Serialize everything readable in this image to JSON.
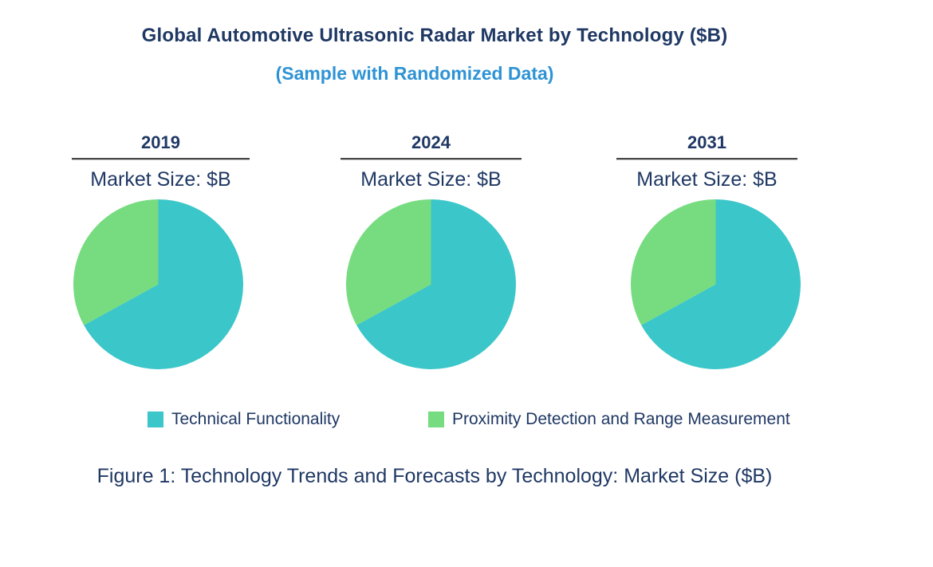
{
  "header": {
    "title": "Global Automotive Ultrasonic Radar Market by Technology ($B)",
    "subtitle": "(Sample with Randomized Data)"
  },
  "caption": "Figure 1: Technology Trends and Forecasts by Technology: Market Size ($B)",
  "legend": [
    {
      "label": "Technical Functionality",
      "color": "#3BC6C9"
    },
    {
      "label": "Proximity Detection and Range Measurement",
      "color": "#76DC7F"
    }
  ],
  "colors": {
    "title_navy": "#1F3864",
    "subtitle_blue": "#2E93D5",
    "underline_gray": "#464646",
    "background": "#FFFFFF"
  },
  "chart_data": {
    "type": "pie",
    "title": "Global Automotive Ultrasonic Radar Market by Technology ($B)",
    "subtitle": "(Sample with Randomized Data)",
    "legend_position": "bottom",
    "series": [
      "Technical Functionality",
      "Proximity Detection and Range Measurement"
    ],
    "series_colors": [
      "#3BC6C9",
      "#76DC7F"
    ],
    "start_angle_deg": 0,
    "direction": "clockwise",
    "pies": [
      {
        "year": "2019",
        "label": "Market Size: $B",
        "values_pct": [
          67,
          33
        ]
      },
      {
        "year": "2024",
        "label": "Market Size: $B",
        "values_pct": [
          67,
          33
        ]
      },
      {
        "year": "2031",
        "label": "Market Size: $B",
        "values_pct": [
          67,
          33
        ]
      }
    ]
  }
}
